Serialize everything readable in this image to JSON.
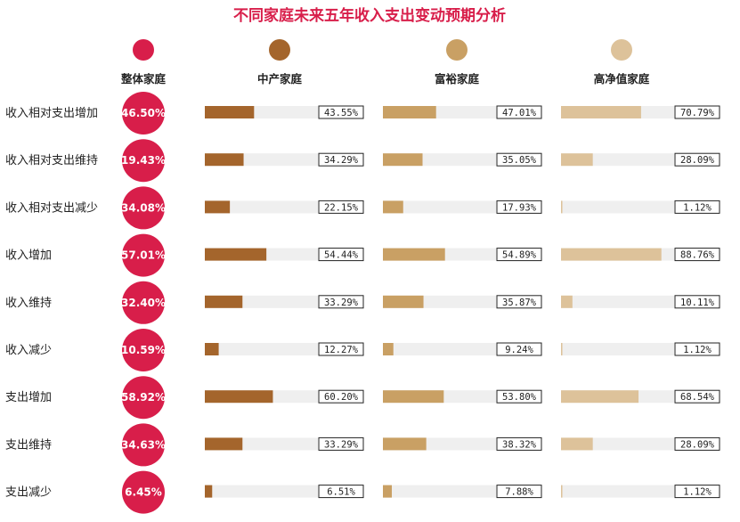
{
  "chart_data": {
    "type": "bar",
    "title": "不同家庭未来五年收入支出变动预期分析",
    "categories": [
      "收入相对支出增加",
      "收入相对支出维持",
      "收入相对支出减少",
      "收入增加",
      "收入维持",
      "收入减少",
      "支出增加",
      "支出维持",
      "支出减少"
    ],
    "series": [
      {
        "name": "整体家庭",
        "color": "#d81e4a",
        "values": [
          46.5,
          19.43,
          34.08,
          57.01,
          32.4,
          10.59,
          58.92,
          34.63,
          6.45
        ],
        "labels": [
          "46.50%",
          "19.43%",
          "34.08%",
          "57.01%",
          "32.40%",
          "10.59%",
          "58.92%",
          "34.63%",
          "6.45%"
        ]
      },
      {
        "name": "中产家庭",
        "color": "#a4652c",
        "values": [
          43.55,
          34.29,
          22.15,
          54.44,
          33.29,
          12.27,
          60.2,
          33.29,
          6.51
        ],
        "labels": [
          "43.55%",
          "34.29%",
          "22.15%",
          "54.44%",
          "33.29%",
          "12.27%",
          "60.20%",
          "33.29%",
          "6.51%"
        ]
      },
      {
        "name": "富裕家庭",
        "color": "#c9a064",
        "values": [
          47.01,
          35.05,
          17.93,
          54.89,
          35.87,
          9.24,
          53.8,
          38.32,
          7.88
        ],
        "labels": [
          "47.01%",
          "35.05%",
          "17.93%",
          "54.89%",
          "35.87%",
          "9.24%",
          "53.80%",
          "38.32%",
          "7.88%"
        ]
      },
      {
        "name": "高净值家庭",
        "color": "#ddc29a",
        "values": [
          70.79,
          28.09,
          1.12,
          88.76,
          10.11,
          1.12,
          68.54,
          28.09,
          1.12
        ],
        "labels": [
          "70.79%",
          "28.09%",
          "1.12%",
          "88.76%",
          "10.11%",
          "1.12%",
          "68.54%",
          "28.09%",
          "1.12%"
        ]
      }
    ],
    "title_color": "#d81e4a",
    "track_color": "#efefef",
    "ylim": [
      0,
      100
    ]
  }
}
